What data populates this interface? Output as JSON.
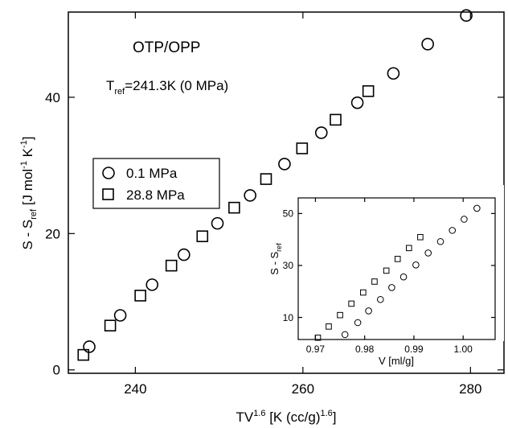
{
  "chart_data": [
    {
      "type": "scatter",
      "title_text": "OTP/OPP",
      "annotation": {
        "prefix": "T",
        "sub": "ref",
        "suffix": "=241.3K (0 MPa)"
      },
      "xlabel": {
        "main": "TV",
        "sup1": "1.6",
        "mid": " [K (cc/g)",
        "sup2": "1.6",
        "end": "]"
      },
      "ylabel": {
        "s1": "S - S",
        "sub": "ref",
        "mid": "  [J mol",
        "sup1": "-1",
        "mid2": " K",
        "sup2": "-1",
        "end": "]"
      },
      "xlim": [
        232,
        284
      ],
      "ylim": [
        -0.5,
        52.5
      ],
      "xticks": [
        240,
        260,
        280
      ],
      "yticks": [
        0,
        20,
        40
      ],
      "legend": {
        "placement": "left-middle"
      },
      "series": [
        {
          "name": "0.1 MPa",
          "marker": "circle",
          "x": [
            234.5,
            238.2,
            242.0,
            245.8,
            249.8,
            253.7,
            257.8,
            262.2,
            266.5,
            270.8,
            274.9,
            279.5
          ],
          "y": [
            3.4,
            8.0,
            12.5,
            16.9,
            21.5,
            25.6,
            30.2,
            34.8,
            39.2,
            43.5,
            47.8,
            52.0
          ]
        },
        {
          "name": "28.8 MPa",
          "marker": "square",
          "x": [
            233.8,
            237.0,
            240.6,
            244.3,
            248.0,
            251.8,
            255.6,
            259.9,
            263.9,
            267.8
          ],
          "y": [
            2.2,
            6.5,
            10.9,
            15.3,
            19.6,
            23.8,
            28.0,
            32.5,
            36.7,
            40.9
          ]
        }
      ]
    },
    {
      "type": "scatter",
      "xlabel": "V  [ml/g]",
      "ylabel": {
        "s1": "S - S",
        "sub": "ref"
      },
      "xlim": [
        0.9665,
        1.0065
      ],
      "ylim": [
        1.5,
        56
      ],
      "xticks": [
        "0.97",
        "0.98",
        "0.99",
        "1.00"
      ],
      "yticks": [
        10,
        30,
        50
      ],
      "series": [
        {
          "marker": "circle",
          "x": [
            0.976,
            0.9786,
            0.9808,
            0.9832,
            0.9855,
            0.9879,
            0.9904,
            0.9929,
            0.9954,
            0.9978,
            1.0002,
            1.0028
          ],
          "y": [
            3.4,
            8.0,
            12.5,
            16.9,
            21.5,
            25.6,
            30.2,
            34.8,
            39.2,
            43.5,
            47.8,
            52.0
          ]
        },
        {
          "marker": "square",
          "x": [
            0.9705,
            0.9727,
            0.975,
            0.9773,
            0.9797,
            0.982,
            0.9844,
            0.9867,
            0.989,
            0.9913
          ],
          "y": [
            2.2,
            6.5,
            10.9,
            15.3,
            19.6,
            23.8,
            28.0,
            32.5,
            36.7,
            40.9
          ]
        }
      ]
    }
  ]
}
